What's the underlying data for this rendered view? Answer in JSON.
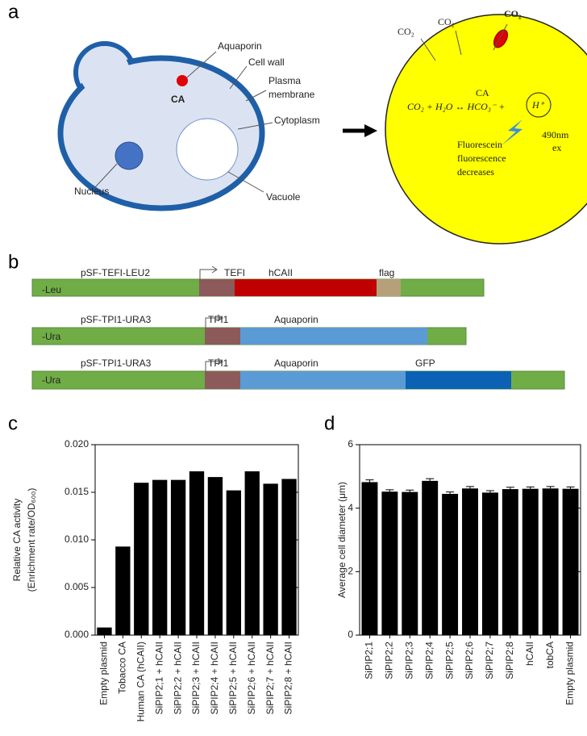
{
  "panel_labels": [
    "a",
    "b",
    "c",
    "d"
  ],
  "cell_labels": [
    "Aquaporin",
    "Cell wall",
    "Plasma",
    "membrane",
    "Cytoplasm",
    "CA",
    "Nucleus",
    "Vacuole"
  ],
  "reaction": {
    "co2": [
      "CO₂",
      "CO₂",
      "CO₂"
    ],
    "ca": "CA",
    "equation": "CO₂ + H₂O ↔ HCO₃⁻ +",
    "proton": "H⁺",
    "excitation": [
      "490nm",
      "ex"
    ],
    "readout": [
      "Fluorescein",
      "fluorescence",
      "decreases"
    ]
  },
  "constructs": [
    {
      "plasmid": "pSF-TEFI-LEU2",
      "marker": "-Leu",
      "segments": [
        "TEFI",
        "hCAII",
        "flag"
      ]
    },
    {
      "plasmid": "pSF-TPI1-URA3",
      "marker": "-Ura",
      "segments": [
        "TPI1",
        "Aquaporin"
      ]
    },
    {
      "plasmid": "pSF-TPI1-URA3",
      "marker": "-Ura",
      "segments": [
        "TPI1",
        "Aquaporin",
        "GFP"
      ]
    }
  ],
  "chart_data": [
    {
      "type": "bar",
      "ylabel": [
        "Relative CA activity",
        "(Enrichment rate/OD₆₀₀)"
      ],
      "categories": [
        "Empty plasmid",
        "Tobacco CA",
        "Human CA (hCAII)",
        "SiPIP2;1 + hCAII",
        "SiPIP2;2 + hCAII",
        "SiPIP2;3 + hCAII",
        "SiPIP2;4 + hCAII",
        "SiPIP2;5 + hCAII",
        "SiPIP2;6 + hCAII",
        "SiPIP2;7 + hCAII",
        "SiPIP2;8 + hCAII"
      ],
      "values": [
        0.0008,
        0.0093,
        0.016,
        0.0163,
        0.0163,
        0.0172,
        0.0166,
        0.0152,
        0.0172,
        0.0159,
        0.0164
      ],
      "color": "#000000",
      "ylim": [
        0,
        0.02
      ],
      "yticks": [
        {
          "value": 0,
          "label": "0.000"
        },
        {
          "value": 0.005,
          "label": "0.005"
        },
        {
          "value": 0.01,
          "label": "0.010"
        },
        {
          "value": 0.015,
          "label": "0.015"
        },
        {
          "value": 0.02,
          "label": "0.020"
        }
      ]
    },
    {
      "type": "bar",
      "ylabel": [
        "Average cell diameter (μm)"
      ],
      "categories": [
        "SiPIP2;1",
        "SiPIP2;2",
        "SiPIP2;3",
        "SiPIP2;4",
        "SiPIP2;5",
        "SiPIP2;6",
        "SiPIP2;7",
        "SiPIP2;8",
        "hCAII",
        "tobCA",
        "Empty plasmid"
      ],
      "values": [
        4.82,
        4.52,
        4.51,
        4.86,
        4.45,
        4.62,
        4.49,
        4.6,
        4.61,
        4.62,
        4.61
      ],
      "errors": [
        0.07,
        0.06,
        0.06,
        0.07,
        0.06,
        0.06,
        0.06,
        0.06,
        0.06,
        0.06,
        0.06
      ],
      "color": "#000000",
      "ylim": [
        0,
        6
      ],
      "yticks": [
        0,
        2,
        4,
        6
      ]
    }
  ]
}
